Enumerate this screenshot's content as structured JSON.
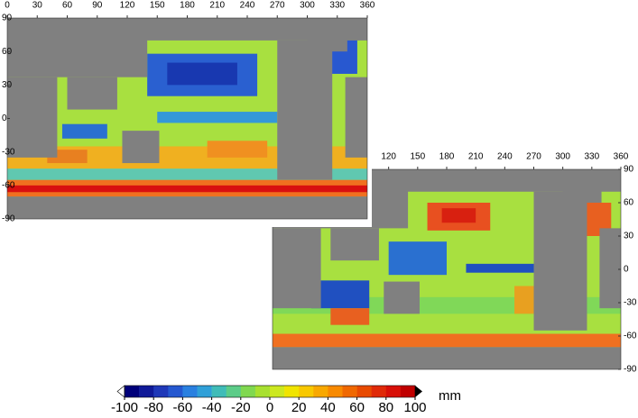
{
  "panels": [
    {
      "xticks": [
        0,
        30,
        60,
        90,
        120,
        150,
        180,
        210,
        240,
        270,
        300,
        330,
        360
      ],
      "yticks": [
        90,
        60,
        30,
        0,
        -30,
        -60,
        -90
      ],
      "xlim": [
        0,
        360
      ],
      "ylim": [
        -90,
        90
      ]
    },
    {
      "xticks": [
        120,
        150,
        180,
        210,
        240,
        270,
        300,
        330,
        360
      ],
      "yticks": [
        90,
        60,
        30,
        0,
        -30,
        -60,
        -90
      ],
      "xlim": [
        0,
        360
      ],
      "ylim": [
        -90,
        90
      ]
    }
  ],
  "colorbar": {
    "ticks": [
      -100,
      -80,
      -60,
      -40,
      -20,
      0,
      20,
      40,
      60,
      80,
      100
    ],
    "unit": "mm",
    "colors": [
      "#00007a",
      "#101a98",
      "#1f38b8",
      "#2558d0",
      "#2a80e0",
      "#30a0d8",
      "#40bcb8",
      "#5ccc88",
      "#80d850",
      "#a8e030",
      "#cce820",
      "#f0e400",
      "#f8c800",
      "#f8a800",
      "#f88a00",
      "#f06800",
      "#e84a00",
      "#e02a08",
      "#d81008",
      "#c00000"
    ]
  }
}
